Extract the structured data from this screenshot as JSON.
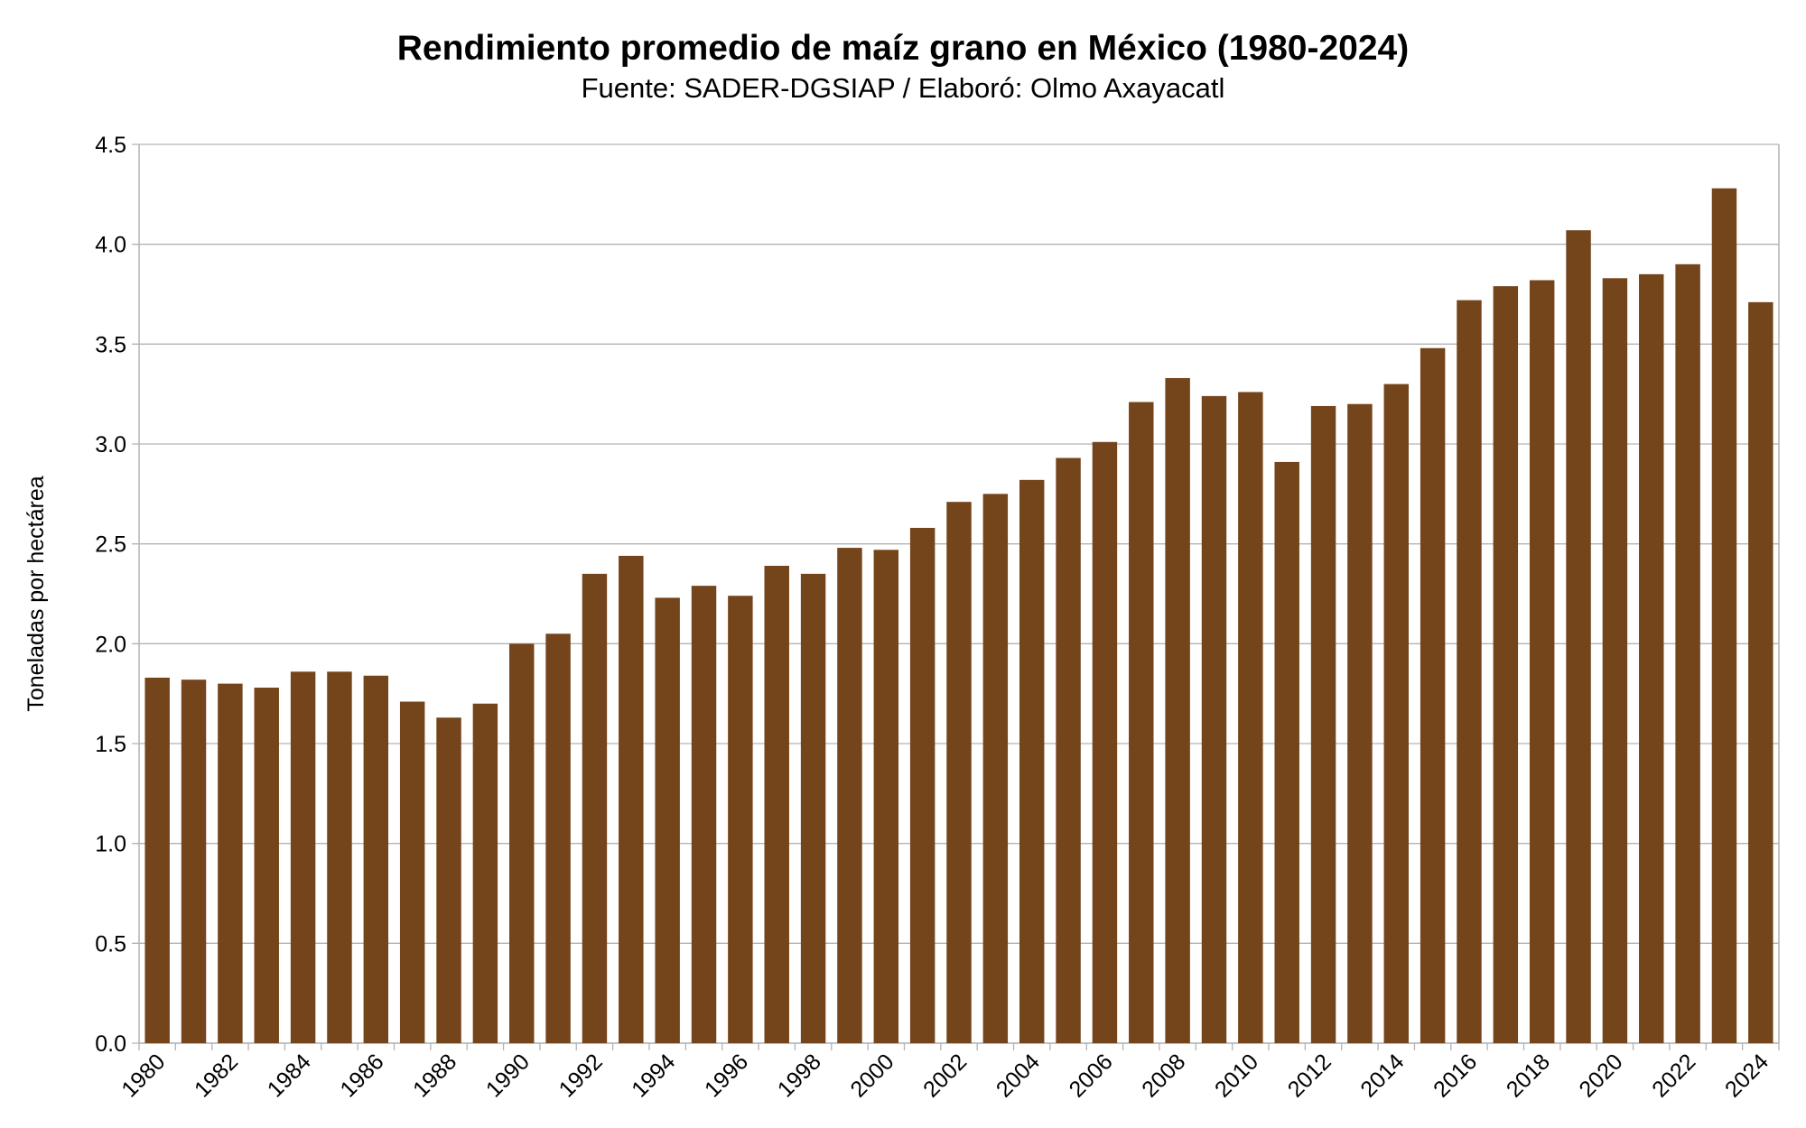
{
  "chart_data": {
    "type": "bar",
    "title": "Rendimiento promedio de maíz grano en México (1980-2024)",
    "subtitle": "Fuente: SADER-DGSIAP / Elaboró: Olmo Axayacatl",
    "xlabel": "",
    "ylabel": "Toneladas por hectárea",
    "ylim": [
      0,
      4.5
    ],
    "yticks": [
      "0.0",
      "0.5",
      "1.0",
      "1.5",
      "2.0",
      "2.5",
      "3.0",
      "3.5",
      "4.0",
      "4.5"
    ],
    "grid": true,
    "bar_color": "#74441a",
    "categories": [
      "1980",
      "1981",
      "1982",
      "1983",
      "1984",
      "1985",
      "1986",
      "1987",
      "1988",
      "1989",
      "1990",
      "1991",
      "1992",
      "1993",
      "1994",
      "1995",
      "1996",
      "1997",
      "1998",
      "1999",
      "2000",
      "2001",
      "2002",
      "2003",
      "2004",
      "2005",
      "2006",
      "2007",
      "2008",
      "2009",
      "2010",
      "2011",
      "2012",
      "2013",
      "2014",
      "2015",
      "2016",
      "2017",
      "2018",
      "2019",
      "2020",
      "2021",
      "2022",
      "2023",
      "2024"
    ],
    "values": [
      1.83,
      1.82,
      1.8,
      1.78,
      1.86,
      1.86,
      1.84,
      1.71,
      1.63,
      1.7,
      2.0,
      2.05,
      2.35,
      2.44,
      2.23,
      2.29,
      2.24,
      2.39,
      2.35,
      2.48,
      2.47,
      2.58,
      2.71,
      2.75,
      2.82,
      2.93,
      3.01,
      3.21,
      3.33,
      3.24,
      3.26,
      2.91,
      3.19,
      3.2,
      3.3,
      3.48,
      3.72,
      3.79,
      3.82,
      4.07,
      3.83,
      3.85,
      3.9,
      4.28,
      3.71
    ]
  }
}
